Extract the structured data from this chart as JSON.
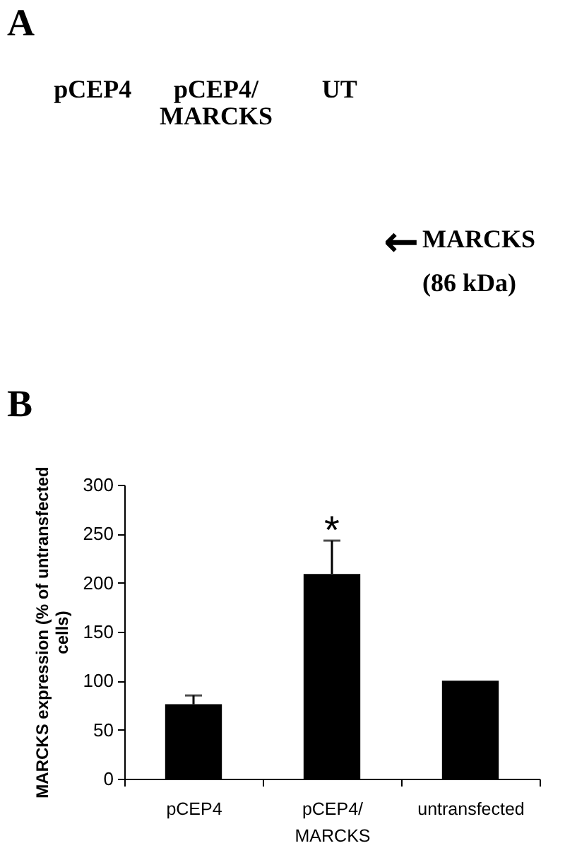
{
  "chart_data": [
    {
      "type": "other",
      "title": "A",
      "categories": [
        "pCEP4",
        "pCEP4/ MARCKS",
        "UT"
      ],
      "annotations": [
        "←",
        "MARCKS (86 kDa)"
      ]
    },
    {
      "type": "bar",
      "title": "B",
      "ylabel": "MARCKS expression (% of untransfected cells)",
      "categories": [
        "pCEP4",
        "pCEP4/ MARCKS",
        "untransfected"
      ],
      "values": [
        76,
        209,
        100
      ],
      "errors": [
        [
          76,
          85
        ],
        [
          209,
          243
        ],
        null
      ],
      "color": "#000000",
      "ylim": [
        0,
        300
      ],
      "yticks": [
        0,
        50,
        100,
        150,
        200,
        250,
        300
      ],
      "annotations": [
        {
          "text": "*",
          "x": "pCEP4/ MARCKS",
          "y": 243
        }
      ]
    }
  ]
}
